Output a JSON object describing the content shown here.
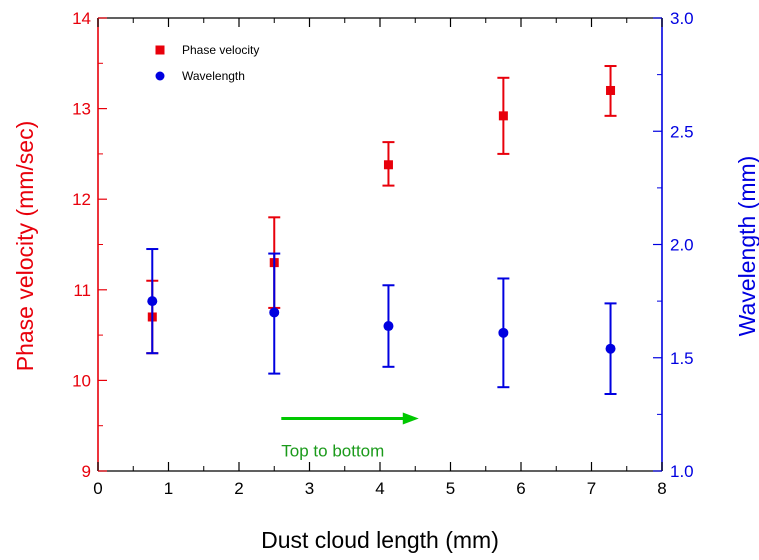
{
  "chart_data": {
    "type": "scatter",
    "title": "",
    "xlabel": "Dust cloud length (mm)",
    "ylabel_left": "Phase velocity (mm/sec)",
    "ylabel_right": "Wavelength (mm)",
    "xlim": [
      0,
      8
    ],
    "ylim_left": [
      9,
      14
    ],
    "ylim_right": [
      1.0,
      3.0
    ],
    "x_ticks": [
      "0",
      "1",
      "2",
      "3",
      "4",
      "5",
      "6",
      "7",
      "8"
    ],
    "y_left_ticks": [
      "9",
      "10",
      "11",
      "12",
      "13",
      "14"
    ],
    "y_right_ticks": [
      "1.0",
      "1.5",
      "2.0",
      "2.5",
      "3.0"
    ],
    "grid": false,
    "legend_position": "top-left",
    "colors": {
      "left": "#e8000b",
      "right": "#0000e0",
      "annotation": "#00c800",
      "annotation_text": "#1a9a1a"
    },
    "series": [
      {
        "name": "Phase velocity",
        "axis": "left",
        "marker": "square",
        "points": [
          {
            "x": 0.77,
            "y": 10.7,
            "err_low": 10.3,
            "err_high": 11.1
          },
          {
            "x": 2.5,
            "y": 11.3,
            "err_low": 10.8,
            "err_high": 11.8
          },
          {
            "x": 4.12,
            "y": 12.38,
            "err_low": 12.15,
            "err_high": 12.63
          },
          {
            "x": 5.75,
            "y": 12.92,
            "err_low": 12.5,
            "err_high": 13.34
          },
          {
            "x": 7.27,
            "y": 13.2,
            "err_low": 12.92,
            "err_high": 13.47
          }
        ]
      },
      {
        "name": "Wavelength",
        "axis": "right",
        "marker": "circle",
        "points": [
          {
            "x": 0.77,
            "y": 1.75,
            "err_low": 1.52,
            "err_high": 1.98
          },
          {
            "x": 2.5,
            "y": 1.7,
            "err_low": 1.43,
            "err_high": 1.96
          },
          {
            "x": 4.12,
            "y": 1.64,
            "err_low": 1.46,
            "err_high": 1.82
          },
          {
            "x": 5.75,
            "y": 1.61,
            "err_low": 1.37,
            "err_high": 1.85
          },
          {
            "x": 7.27,
            "y": 1.54,
            "err_low": 1.34,
            "err_high": 1.74
          }
        ]
      }
    ],
    "annotation": {
      "text": "Top to bottom",
      "arrow_from_x": 2.6,
      "arrow_to_x": 4.55,
      "arrow_y": 9.58
    }
  }
}
